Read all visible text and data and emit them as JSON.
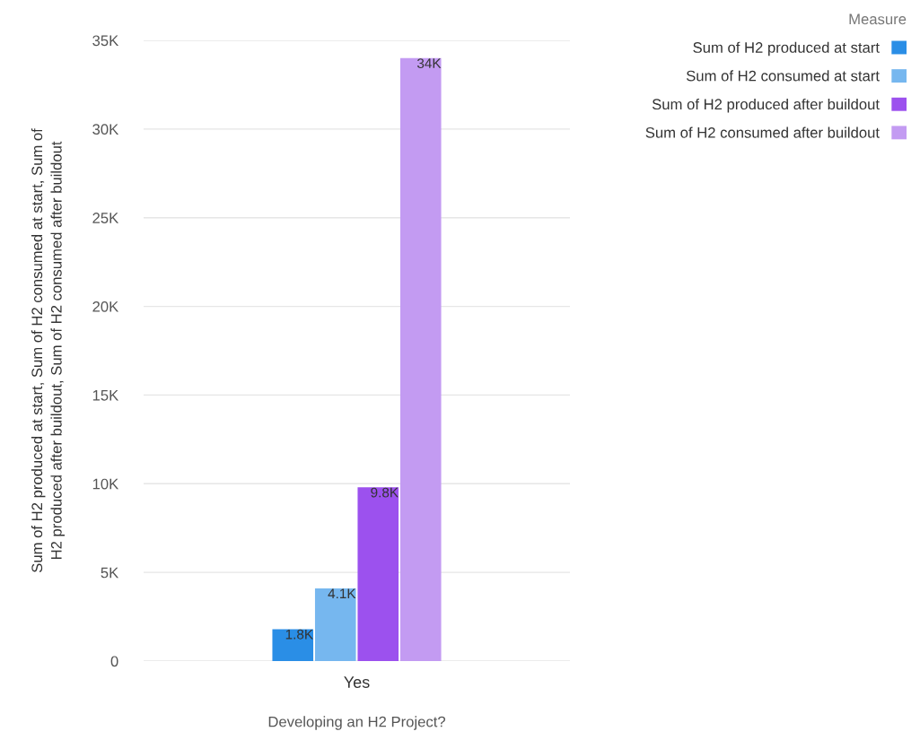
{
  "chart_data": {
    "type": "bar",
    "xlabel": "Developing an H2 Project?",
    "ylabel": "Sum of H2 produced at start, Sum of H2 consumed at start, Sum of H2 produced after buildout, Sum of H2 consumed after buildout",
    "legend_title": "Measure",
    "categories": [
      "Yes"
    ],
    "series": [
      {
        "name": "Sum of H2 produced at start",
        "color": "#2a8ee6",
        "values": [
          1800
        ],
        "value_labels": [
          "1.8K"
        ]
      },
      {
        "name": "Sum of H2 consumed at start",
        "color": "#76b7ef",
        "values": [
          4100
        ],
        "value_labels": [
          "4.1K"
        ]
      },
      {
        "name": "Sum of H2 produced after buildout",
        "color": "#9c51ee",
        "values": [
          9800
        ],
        "value_labels": [
          "9.8K"
        ]
      },
      {
        "name": "Sum of H2 consumed after buildout",
        "color": "#c39bf2",
        "values": [
          34000
        ],
        "value_labels": [
          "34K"
        ]
      }
    ],
    "ylim": [
      0,
      35000
    ],
    "yticks": [
      0,
      {
        "value": 5000,
        "label": "5K"
      },
      {
        "value": 10000,
        "label": "10K"
      },
      {
        "value": 15000,
        "label": "15K"
      },
      {
        "value": 20000,
        "label": "20K"
      },
      {
        "value": 25000,
        "label": "25K"
      },
      {
        "value": 30000,
        "label": "30K"
      },
      {
        "value": 35000,
        "label": "35K"
      }
    ],
    "grid": "y",
    "legend": "top right"
  }
}
